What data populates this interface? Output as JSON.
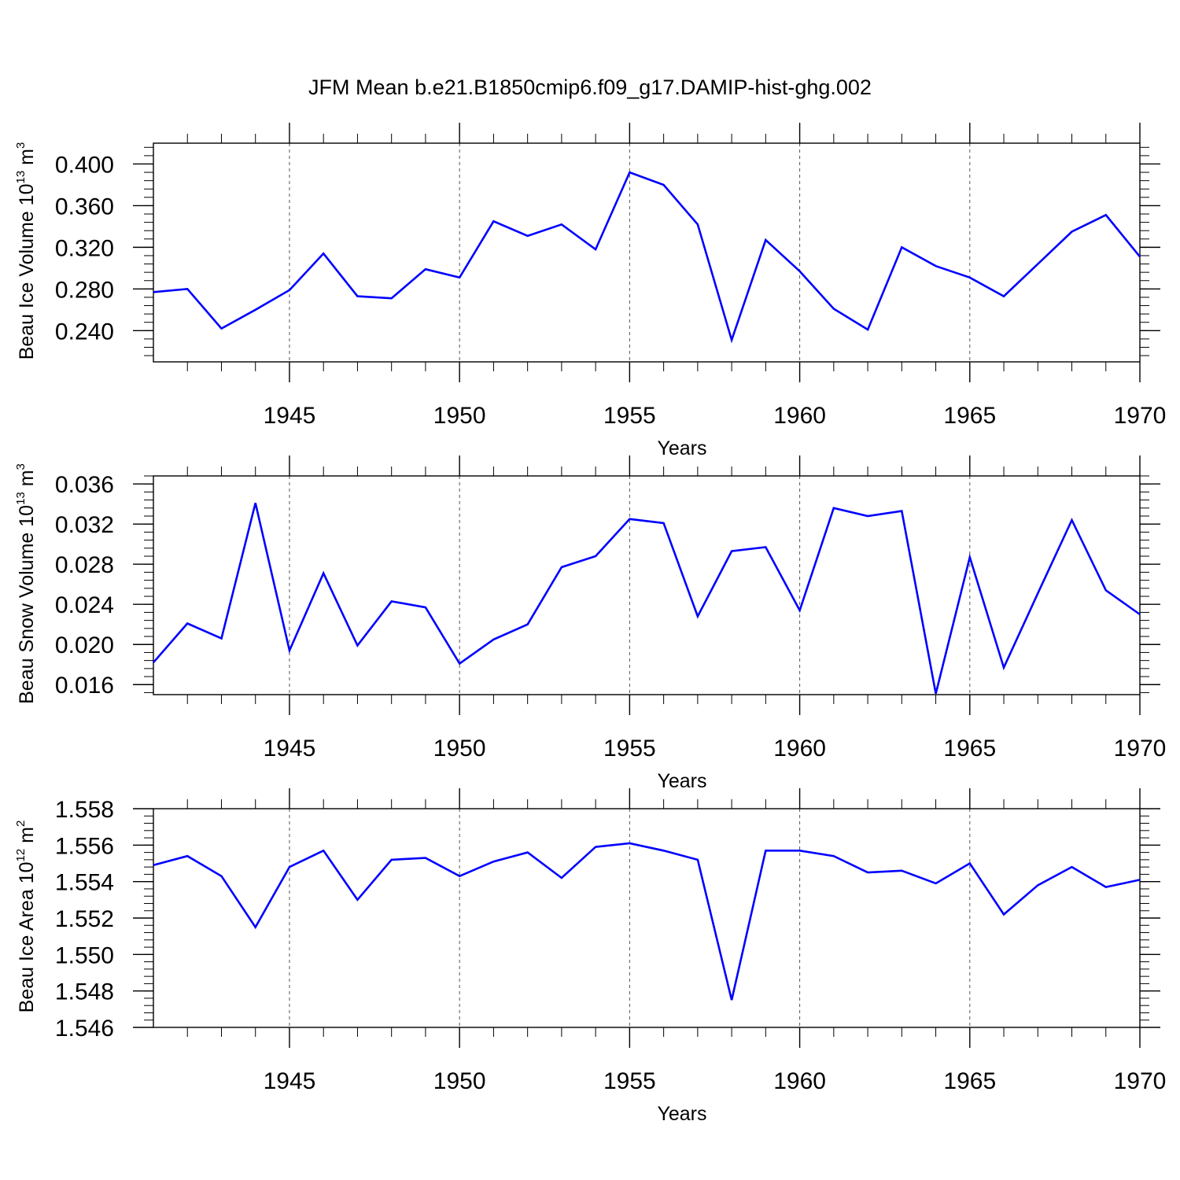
{
  "title": "JFM Mean b.e21.B1850cmip6.f09_g17.DAMIP-hist-ghg.002",
  "line_color": "#0000ff",
  "chart_data": [
    {
      "type": "line",
      "ylabel": {
        "main": "Beau Ice Volume 10",
        "exp": "13",
        "unit": " m",
        "unit_exp": "3"
      },
      "xlabel": "Years",
      "xlim": [
        1941,
        1970
      ],
      "ylim": [
        0.21,
        0.42
      ],
      "yticks": [
        0.24,
        0.28,
        0.32,
        0.36,
        0.4
      ],
      "ytick_labels": [
        "0.240",
        "0.280",
        "0.320",
        "0.360",
        "0.400"
      ],
      "yminor_step": 0.008,
      "xticks": [
        1945,
        1950,
        1955,
        1960,
        1965,
        1970
      ],
      "xtick_labels": [
        "1945",
        "1950",
        "1955",
        "1960",
        "1965",
        "1970"
      ],
      "grid": "dashed vertical at major x ticks",
      "x": [
        1941,
        1942,
        1943,
        1944,
        1945,
        1946,
        1947,
        1948,
        1949,
        1950,
        1951,
        1952,
        1953,
        1954,
        1955,
        1956,
        1957,
        1958,
        1959,
        1960,
        1961,
        1962,
        1963,
        1964,
        1965,
        1966,
        1967,
        1968,
        1969,
        1970
      ],
      "series": [
        {
          "values": [
            0.277,
            0.28,
            0.242,
            0.26,
            0.279,
            0.314,
            0.273,
            0.271,
            0.299,
            0.291,
            0.345,
            0.331,
            0.342,
            0.318,
            0.392,
            0.38,
            0.342,
            0.231,
            0.327,
            0.297,
            0.261,
            0.241,
            0.32,
            0.302,
            0.291,
            0.273,
            0.304,
            0.335,
            0.351,
            0.311
          ]
        }
      ]
    },
    {
      "type": "line",
      "ylabel": {
        "main": "Beau Snow Volume 10",
        "exp": "13",
        "unit": " m",
        "unit_exp": "3"
      },
      "xlabel": "Years",
      "xlim": [
        1941,
        1970
      ],
      "ylim": [
        0.015,
        0.0368
      ],
      "yticks": [
        0.016,
        0.02,
        0.024,
        0.028,
        0.032,
        0.036
      ],
      "ytick_labels": [
        "0.016",
        "0.020",
        "0.024",
        "0.028",
        "0.032",
        "0.036"
      ],
      "yminor_step": 0.0008,
      "xticks": [
        1945,
        1950,
        1955,
        1960,
        1965,
        1970
      ],
      "xtick_labels": [
        "1945",
        "1950",
        "1955",
        "1960",
        "1965",
        "1970"
      ],
      "grid": "dashed vertical at major x ticks",
      "x": [
        1941,
        1942,
        1943,
        1944,
        1945,
        1946,
        1947,
        1948,
        1949,
        1950,
        1951,
        1952,
        1953,
        1954,
        1955,
        1956,
        1957,
        1958,
        1959,
        1960,
        1961,
        1962,
        1963,
        1964,
        1965,
        1966,
        1967,
        1968,
        1969,
        1970
      ],
      "series": [
        {
          "values": [
            0.0182,
            0.0221,
            0.0206,
            0.0341,
            0.0194,
            0.0271,
            0.0199,
            0.0243,
            0.0237,
            0.0181,
            0.0205,
            0.022,
            0.0277,
            0.0288,
            0.0325,
            0.0321,
            0.0228,
            0.0293,
            0.0297,
            0.0234,
            0.0336,
            0.0328,
            0.0333,
            0.0151,
            0.0287,
            0.0177,
            0.0251,
            0.0324,
            0.0254,
            0.023
          ]
        }
      ]
    },
    {
      "type": "line",
      "ylabel": {
        "main": "Beau Ice Area 10",
        "exp": "12",
        "unit": " m",
        "unit_exp": "2"
      },
      "xlabel": "Years",
      "xlim": [
        1941,
        1970
      ],
      "ylim": [
        1.546,
        1.558
      ],
      "yticks": [
        1.546,
        1.548,
        1.55,
        1.552,
        1.554,
        1.556,
        1.558
      ],
      "ytick_labels": [
        "1.546",
        "1.548",
        "1.550",
        "1.552",
        "1.554",
        "1.556",
        "1.558"
      ],
      "yminor_step": 0.0004,
      "xticks": [
        1945,
        1950,
        1955,
        1960,
        1965,
        1970
      ],
      "xtick_labels": [
        "1945",
        "1950",
        "1955",
        "1960",
        "1965",
        "1970"
      ],
      "grid": "dashed vertical at major x ticks",
      "x": [
        1941,
        1942,
        1943,
        1944,
        1945,
        1946,
        1947,
        1948,
        1949,
        1950,
        1951,
        1952,
        1953,
        1954,
        1955,
        1956,
        1957,
        1958,
        1959,
        1960,
        1961,
        1962,
        1963,
        1964,
        1965,
        1966,
        1967,
        1968,
        1969,
        1970
      ],
      "series": [
        {
          "values": [
            1.5549,
            1.5554,
            1.5543,
            1.5515,
            1.5548,
            1.5557,
            1.553,
            1.5552,
            1.5553,
            1.5543,
            1.5551,
            1.5556,
            1.5542,
            1.5559,
            1.5561,
            1.5557,
            1.5552,
            1.5475,
            1.5557,
            1.5557,
            1.5554,
            1.5545,
            1.5546,
            1.5539,
            1.555,
            1.5522,
            1.5538,
            1.5548,
            1.5537,
            1.5541
          ]
        }
      ]
    }
  ]
}
